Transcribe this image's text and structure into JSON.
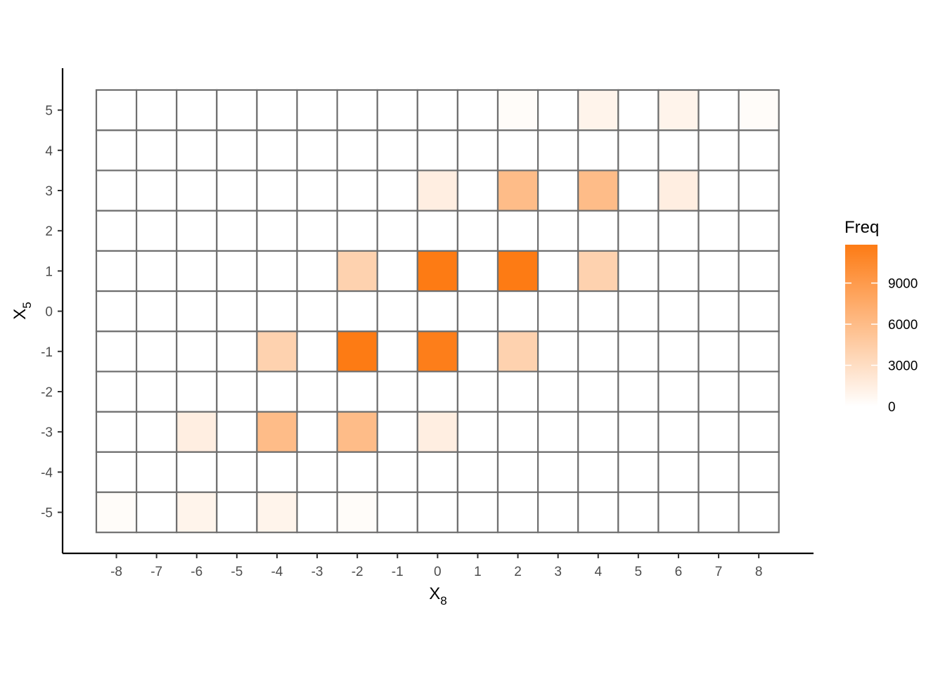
{
  "chart_data": {
    "type": "heatmap",
    "x_axis": {
      "label_main": "X",
      "label_sub": "8",
      "categories": [
        -8,
        -7,
        -6,
        -5,
        -4,
        -3,
        -2,
        -1,
        0,
        1,
        2,
        3,
        4,
        5,
        6,
        7,
        8
      ]
    },
    "y_axis": {
      "label_main": "X",
      "label_sub": "5",
      "categories": [
        -5,
        -4,
        -3,
        -2,
        -1,
        0,
        1,
        2,
        3,
        4,
        5
      ]
    },
    "legend": {
      "title": "Freq",
      "position": "right",
      "ticks": [
        0,
        3000,
        6000,
        9000
      ],
      "range": [
        0,
        11800
      ]
    },
    "colors": {
      "low": "#ffffff",
      "high": "#fd7b14",
      "cell_border": "#6e6e6e",
      "axis": "#000000"
    },
    "cells": [
      {
        "x": 2,
        "y": 5,
        "value": 300
      },
      {
        "x": 4,
        "y": 5,
        "value": 1000
      },
      {
        "x": 6,
        "y": 5,
        "value": 1000
      },
      {
        "x": 8,
        "y": 5,
        "value": 300
      },
      {
        "x": 0,
        "y": 3,
        "value": 1500
      },
      {
        "x": 2,
        "y": 3,
        "value": 6000
      },
      {
        "x": 4,
        "y": 3,
        "value": 6000
      },
      {
        "x": 6,
        "y": 3,
        "value": 1500
      },
      {
        "x": -2,
        "y": 1,
        "value": 4000
      },
      {
        "x": 0,
        "y": 1,
        "value": 11800
      },
      {
        "x": 2,
        "y": 1,
        "value": 11800
      },
      {
        "x": 4,
        "y": 1,
        "value": 4000
      },
      {
        "x": -4,
        "y": -1,
        "value": 4000
      },
      {
        "x": -2,
        "y": -1,
        "value": 11800
      },
      {
        "x": 0,
        "y": -1,
        "value": 11500
      },
      {
        "x": 2,
        "y": -1,
        "value": 4000
      },
      {
        "x": -6,
        "y": -3,
        "value": 1500
      },
      {
        "x": -4,
        "y": -3,
        "value": 6000
      },
      {
        "x": -2,
        "y": -3,
        "value": 6000
      },
      {
        "x": 0,
        "y": -3,
        "value": 1500
      },
      {
        "x": -8,
        "y": -5,
        "value": 300
      },
      {
        "x": -6,
        "y": -5,
        "value": 1000
      },
      {
        "x": -4,
        "y": -5,
        "value": 1000
      },
      {
        "x": -2,
        "y": -5,
        "value": 300
      }
    ]
  }
}
